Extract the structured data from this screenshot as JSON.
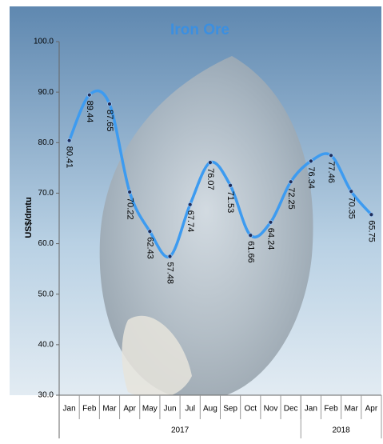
{
  "chart_data": {
    "type": "line",
    "title": "Iron Ore",
    "y_label": "US$/dmtu",
    "category_groups": [
      {
        "name": "2017",
        "categories": [
          "Jan",
          "Feb",
          "Mar",
          "Apr",
          "May",
          "Jun",
          "Jul",
          "Aug",
          "Sep",
          "Oct",
          "Nov",
          "Dec"
        ]
      },
      {
        "name": "2018",
        "categories": [
          "Jan",
          "Feb",
          "Mar",
          "Apr"
        ]
      }
    ],
    "values": [
      80.41,
      89.44,
      87.65,
      70.22,
      62.43,
      57.48,
      67.74,
      76.07,
      71.53,
      61.66,
      64.24,
      72.25,
      76.34,
      77.46,
      70.35,
      65.75
    ],
    "color": "#3d9bf0",
    "marker_color": "#1f2d5a",
    "ylim": [
      30,
      100
    ],
    "yticks": [
      {
        "value": 30,
        "label": "30.0"
      },
      {
        "value": 40,
        "label": "40.0"
      },
      {
        "value": 50,
        "label": "50.0"
      },
      {
        "value": 60,
        "label": "60.0"
      },
      {
        "value": 70,
        "label": "70.0"
      },
      {
        "value": 80,
        "label": "80.0"
      },
      {
        "value": 90,
        "label": "90.0"
      },
      {
        "value": 100,
        "label": "100.0"
      }
    ],
    "grid": false
  }
}
